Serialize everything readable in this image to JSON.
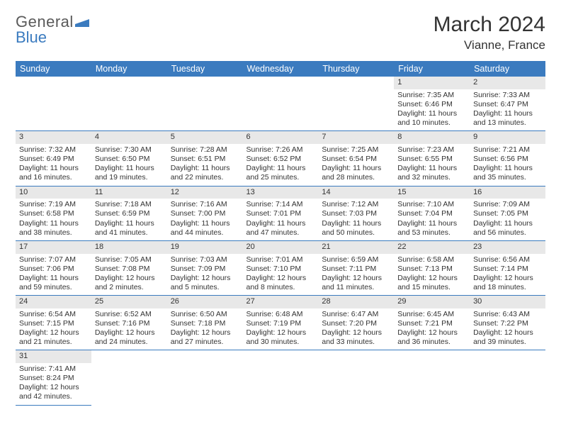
{
  "logo": {
    "part1": "General",
    "part2": "Blue"
  },
  "title": "March 2024",
  "location": "Vianne, France",
  "colors": {
    "header_bg": "#3b7bbf",
    "header_text": "#ffffff",
    "daynum_bg": "#e8e8e8",
    "rule": "#3b7bbf",
    "text": "#333333",
    "logo_gray": "#5a5a5a",
    "logo_blue": "#3b7bbf"
  },
  "fonts": {
    "title_pt": 30,
    "location_pt": 17,
    "dow_pt": 12.5,
    "cell_pt": 10.5
  },
  "dow": [
    "Sunday",
    "Monday",
    "Tuesday",
    "Wednesday",
    "Thursday",
    "Friday",
    "Saturday"
  ],
  "weeks": [
    [
      null,
      null,
      null,
      null,
      null,
      {
        "d": "1",
        "sunrise": "7:35 AM",
        "sunset": "6:46 PM",
        "daylight": "11 hours and 10 minutes."
      },
      {
        "d": "2",
        "sunrise": "7:33 AM",
        "sunset": "6:47 PM",
        "daylight": "11 hours and 13 minutes."
      }
    ],
    [
      {
        "d": "3",
        "sunrise": "7:32 AM",
        "sunset": "6:49 PM",
        "daylight": "11 hours and 16 minutes."
      },
      {
        "d": "4",
        "sunrise": "7:30 AM",
        "sunset": "6:50 PM",
        "daylight": "11 hours and 19 minutes."
      },
      {
        "d": "5",
        "sunrise": "7:28 AM",
        "sunset": "6:51 PM",
        "daylight": "11 hours and 22 minutes."
      },
      {
        "d": "6",
        "sunrise": "7:26 AM",
        "sunset": "6:52 PM",
        "daylight": "11 hours and 25 minutes."
      },
      {
        "d": "7",
        "sunrise": "7:25 AM",
        "sunset": "6:54 PM",
        "daylight": "11 hours and 28 minutes."
      },
      {
        "d": "8",
        "sunrise": "7:23 AM",
        "sunset": "6:55 PM",
        "daylight": "11 hours and 32 minutes."
      },
      {
        "d": "9",
        "sunrise": "7:21 AM",
        "sunset": "6:56 PM",
        "daylight": "11 hours and 35 minutes."
      }
    ],
    [
      {
        "d": "10",
        "sunrise": "7:19 AM",
        "sunset": "6:58 PM",
        "daylight": "11 hours and 38 minutes."
      },
      {
        "d": "11",
        "sunrise": "7:18 AM",
        "sunset": "6:59 PM",
        "daylight": "11 hours and 41 minutes."
      },
      {
        "d": "12",
        "sunrise": "7:16 AM",
        "sunset": "7:00 PM",
        "daylight": "11 hours and 44 minutes."
      },
      {
        "d": "13",
        "sunrise": "7:14 AM",
        "sunset": "7:01 PM",
        "daylight": "11 hours and 47 minutes."
      },
      {
        "d": "14",
        "sunrise": "7:12 AM",
        "sunset": "7:03 PM",
        "daylight": "11 hours and 50 minutes."
      },
      {
        "d": "15",
        "sunrise": "7:10 AM",
        "sunset": "7:04 PM",
        "daylight": "11 hours and 53 minutes."
      },
      {
        "d": "16",
        "sunrise": "7:09 AM",
        "sunset": "7:05 PM",
        "daylight": "11 hours and 56 minutes."
      }
    ],
    [
      {
        "d": "17",
        "sunrise": "7:07 AM",
        "sunset": "7:06 PM",
        "daylight": "11 hours and 59 minutes."
      },
      {
        "d": "18",
        "sunrise": "7:05 AM",
        "sunset": "7:08 PM",
        "daylight": "12 hours and 2 minutes."
      },
      {
        "d": "19",
        "sunrise": "7:03 AM",
        "sunset": "7:09 PM",
        "daylight": "12 hours and 5 minutes."
      },
      {
        "d": "20",
        "sunrise": "7:01 AM",
        "sunset": "7:10 PM",
        "daylight": "12 hours and 8 minutes."
      },
      {
        "d": "21",
        "sunrise": "6:59 AM",
        "sunset": "7:11 PM",
        "daylight": "12 hours and 11 minutes."
      },
      {
        "d": "22",
        "sunrise": "6:58 AM",
        "sunset": "7:13 PM",
        "daylight": "12 hours and 15 minutes."
      },
      {
        "d": "23",
        "sunrise": "6:56 AM",
        "sunset": "7:14 PM",
        "daylight": "12 hours and 18 minutes."
      }
    ],
    [
      {
        "d": "24",
        "sunrise": "6:54 AM",
        "sunset": "7:15 PM",
        "daylight": "12 hours and 21 minutes."
      },
      {
        "d": "25",
        "sunrise": "6:52 AM",
        "sunset": "7:16 PM",
        "daylight": "12 hours and 24 minutes."
      },
      {
        "d": "26",
        "sunrise": "6:50 AM",
        "sunset": "7:18 PM",
        "daylight": "12 hours and 27 minutes."
      },
      {
        "d": "27",
        "sunrise": "6:48 AM",
        "sunset": "7:19 PM",
        "daylight": "12 hours and 30 minutes."
      },
      {
        "d": "28",
        "sunrise": "6:47 AM",
        "sunset": "7:20 PM",
        "daylight": "12 hours and 33 minutes."
      },
      {
        "d": "29",
        "sunrise": "6:45 AM",
        "sunset": "7:21 PM",
        "daylight": "12 hours and 36 minutes."
      },
      {
        "d": "30",
        "sunrise": "6:43 AM",
        "sunset": "7:22 PM",
        "daylight": "12 hours and 39 minutes."
      }
    ],
    [
      {
        "d": "31",
        "sunrise": "7:41 AM",
        "sunset": "8:24 PM",
        "daylight": "12 hours and 42 minutes."
      },
      null,
      null,
      null,
      null,
      null,
      null
    ]
  ],
  "labels": {
    "sunrise": "Sunrise: ",
    "sunset": "Sunset: ",
    "daylight": "Daylight: "
  }
}
